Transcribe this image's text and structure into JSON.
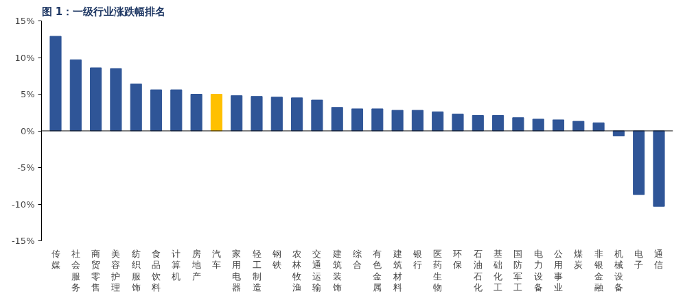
{
  "chart_data": {
    "type": "bar",
    "title": "图 1：一级行业涨跌幅排名",
    "categories": [
      "传媒",
      "社会服务",
      "商贸零售",
      "美容护理",
      "纺织服饰",
      "食品饮料",
      "计算机",
      "房地产",
      "汽车",
      "家用电器",
      "轻工制造",
      "钢铁",
      "农林牧渔",
      "交通运输",
      "建筑装饰",
      "综合",
      "有色金属",
      "建筑材料",
      "银行",
      "医药生物",
      "环保",
      "石油石化",
      "基础化工",
      "国防军工",
      "电力设备",
      "公用事业",
      "煤炭",
      "非银金融",
      "机械设备",
      "电子",
      "通信"
    ],
    "values": [
      12.9,
      9.7,
      8.6,
      8.5,
      6.4,
      5.6,
      5.6,
      5.0,
      5.0,
      4.8,
      4.7,
      4.6,
      4.5,
      4.2,
      3.2,
      3.0,
      3.0,
      2.8,
      2.8,
      2.6,
      2.3,
      2.1,
      2.1,
      1.8,
      1.6,
      1.5,
      1.3,
      1.1,
      -0.7,
      -8.7,
      -10.3
    ],
    "colors": [
      "#2f5597",
      "#2f5597",
      "#2f5597",
      "#2f5597",
      "#2f5597",
      "#2f5597",
      "#2f5597",
      "#2f5597",
      "#ffc000",
      "#2f5597",
      "#2f5597",
      "#2f5597",
      "#2f5597",
      "#2f5597",
      "#2f5597",
      "#2f5597",
      "#2f5597",
      "#2f5597",
      "#2f5597",
      "#2f5597",
      "#2f5597",
      "#2f5597",
      "#2f5597",
      "#2f5597",
      "#2f5597",
      "#2f5597",
      "#2f5597",
      "#2f5597",
      "#2f5597",
      "#2f5597",
      "#2f5597"
    ],
    "ylim": [
      -15,
      15
    ],
    "yticks": [
      {
        "value": -15,
        "label": "-15%"
      },
      {
        "value": -10,
        "label": "-10%"
      },
      {
        "value": -5,
        "label": "-5%"
      },
      {
        "value": 0,
        "label": "0%"
      },
      {
        "value": 5,
        "label": "5%"
      },
      {
        "value": 10,
        "label": "10%"
      },
      {
        "value": 15,
        "label": "15%"
      }
    ],
    "relative": false
  }
}
